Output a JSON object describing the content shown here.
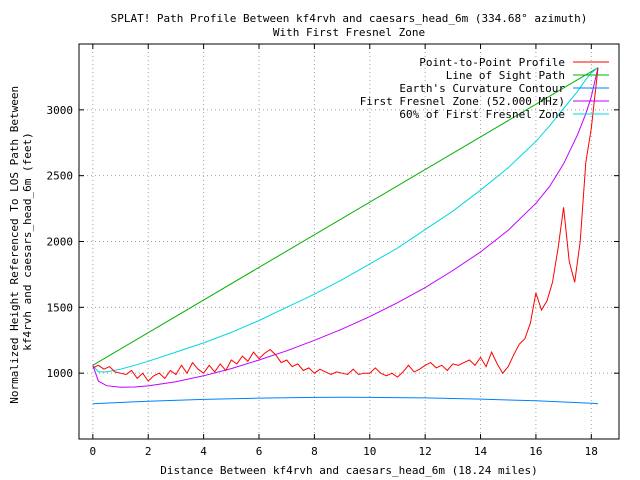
{
  "chart_data": {
    "type": "line",
    "title": "SPLAT! Path Profile Between kf4rvh and caesars_head_6m (334.68° azimuth)",
    "subtitle": "With First Fresnel Zone",
    "xlabel": "Distance Between kf4rvh and caesars_head_6m (18.24 miles)",
    "ylabel": "Normalized Height Referenced To LOS Path Between kf4rvh and caesars_head_6m (feet)",
    "ylabel_lines": [
      "Normalized Height Referenced To LOS Path Between",
      "kf4rvh and caesars_head_6m (feet)"
    ],
    "xlim": [
      -0.5,
      19
    ],
    "ylim": [
      500,
      3500
    ],
    "xticks": [
      0,
      2,
      4,
      6,
      8,
      10,
      12,
      14,
      16,
      18
    ],
    "yticks": [
      1000,
      1500,
      2000,
      2500,
      3000
    ],
    "grid": true,
    "legend_position": "top-right",
    "series": [
      {
        "name": "Point-to-Point Profile",
        "color": "#ff0000",
        "x": [
          0,
          0.2,
          0.4,
          0.6,
          0.8,
          1.0,
          1.2,
          1.4,
          1.6,
          1.8,
          2.0,
          2.2,
          2.4,
          2.6,
          2.8,
          3.0,
          3.2,
          3.4,
          3.6,
          3.8,
          4.0,
          4.2,
          4.4,
          4.6,
          4.8,
          5.0,
          5.2,
          5.4,
          5.6,
          5.8,
          6.0,
          6.2,
          6.4,
          6.6,
          6.8,
          7.0,
          7.2,
          7.4,
          7.6,
          7.8,
          8.0,
          8.2,
          8.4,
          8.6,
          8.8,
          9.0,
          9.2,
          9.4,
          9.6,
          9.8,
          10.0,
          10.2,
          10.4,
          10.6,
          10.8,
          11.0,
          11.2,
          11.4,
          11.6,
          11.8,
          12.0,
          12.2,
          12.4,
          12.6,
          12.8,
          13.0,
          13.2,
          13.4,
          13.6,
          13.8,
          14.0,
          14.2,
          14.4,
          14.6,
          14.8,
          15.0,
          15.2,
          15.4,
          15.6,
          15.8,
          16.0,
          16.2,
          16.4,
          16.6,
          16.8,
          17.0,
          17.2,
          17.4,
          17.6,
          17.8,
          18.0,
          18.24
        ],
        "y": [
          1040,
          1060,
          1030,
          1050,
          1010,
          1000,
          990,
          1020,
          960,
          1000,
          940,
          980,
          1000,
          960,
          1020,
          990,
          1060,
          1000,
          1080,
          1030,
          1000,
          1060,
          1010,
          1070,
          1020,
          1100,
          1070,
          1130,
          1090,
          1160,
          1110,
          1150,
          1180,
          1140,
          1080,
          1100,
          1050,
          1070,
          1020,
          1040,
          1000,
          1030,
          1010,
          990,
          1010,
          1000,
          990,
          1030,
          990,
          1000,
          1000,
          1040,
          1000,
          980,
          1000,
          970,
          1010,
          1060,
          1010,
          1030,
          1060,
          1080,
          1040,
          1060,
          1020,
          1070,
          1060,
          1080,
          1100,
          1060,
          1120,
          1050,
          1160,
          1070,
          1000,
          1050,
          1140,
          1220,
          1260,
          1380,
          1610,
          1480,
          1550,
          1690,
          1950,
          2260,
          1850,
          1690,
          2000,
          2600,
          2860,
          3320
        ]
      },
      {
        "name": "Line of Sight Path",
        "color": "#00b000",
        "x": [
          0,
          18.24
        ],
        "y": [
          1060,
          3320
        ]
      },
      {
        "name": "Earth's Curvature Contour",
        "color": "#0080ff",
        "x": [
          0,
          2,
          4,
          6,
          8,
          9.12,
          10,
          12,
          14,
          16,
          18,
          18.24
        ],
        "y": [
          768,
          787,
          801,
          811,
          816,
          817,
          816,
          812,
          803,
          790,
          771,
          768
        ]
      },
      {
        "name": "First Fresnel Zone (52.000 MHz)",
        "color": "#c000ff",
        "x": [
          0,
          0.2,
          0.5,
          1,
          1.5,
          2,
          3,
          4,
          5,
          6,
          7,
          8,
          9,
          10,
          11,
          12,
          13,
          14,
          15,
          16,
          16.5,
          17,
          17.5,
          17.8,
          18.0,
          18.24
        ],
        "y": [
          1060,
          940,
          905,
          893,
          895,
          903,
          935,
          980,
          1035,
          1100,
          1170,
          1250,
          1335,
          1430,
          1535,
          1650,
          1780,
          1920,
          2085,
          2290,
          2420,
          2590,
          2810,
          2970,
          3100,
          3320
        ]
      },
      {
        "name": "60% of First Fresnel Zone",
        "color": "#00d8e0",
        "x": [
          0,
          0.2,
          0.5,
          1,
          1.5,
          2,
          3,
          4,
          5,
          6,
          7,
          8,
          9,
          10,
          11,
          12,
          13,
          14,
          15,
          16,
          16.5,
          17,
          17.5,
          17.8,
          18.0,
          18.24
        ],
        "y": [
          1060,
          1010,
          1010,
          1030,
          1060,
          1090,
          1160,
          1230,
          1310,
          1400,
          1500,
          1600,
          1710,
          1830,
          1950,
          2090,
          2230,
          2390,
          2560,
          2760,
          2880,
          3010,
          3140,
          3230,
          3280,
          3320
        ]
      }
    ]
  }
}
